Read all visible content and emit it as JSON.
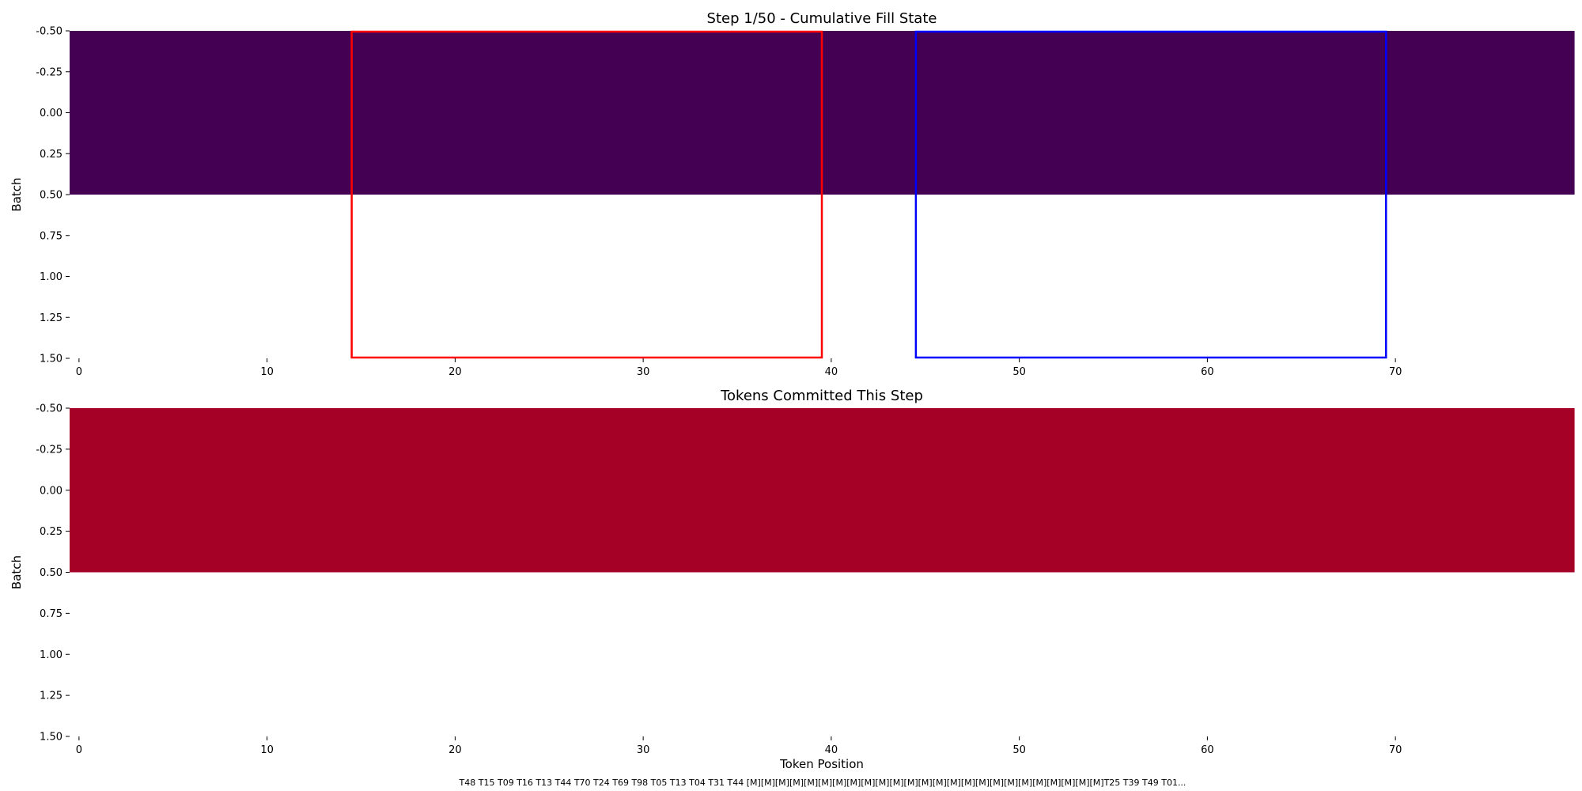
{
  "chart_data": [
    {
      "type": "heatmap",
      "title": "Step 1/50 - Cumulative Fill State",
      "xlabel": "",
      "ylabel": "Batch",
      "xlim": [
        -0.5,
        79.5
      ],
      "ylim": [
        1.5,
        -0.5
      ],
      "xticks": [
        0,
        10,
        20,
        30,
        40,
        50,
        60,
        70
      ],
      "yticks": [
        -0.5,
        -0.25,
        0,
        0.25,
        0.5,
        0.75,
        1,
        1.25,
        1.5
      ],
      "ytick_labels": [
        "-0.50",
        "-0.25",
        "0.00",
        "0.25",
        "0.50",
        "0.75",
        "1.00",
        "1.25",
        "1.50"
      ],
      "rows": 1,
      "cols": 80,
      "fill_value": 0,
      "cell_color": "#440154",
      "regions": [
        {
          "x_start": 14.5,
          "x_end": 39.5,
          "color": "#ff0000"
        },
        {
          "x_start": 44.5,
          "x_end": 69.5,
          "color": "#0000ff"
        }
      ]
    },
    {
      "type": "heatmap",
      "title": "Tokens Committed This Step",
      "xlabel": "Token Position",
      "ylabel": "Batch",
      "xlim": [
        -0.5,
        79.5
      ],
      "ylim": [
        1.5,
        -0.5
      ],
      "xticks": [
        0,
        10,
        20,
        30,
        40,
        50,
        60,
        70
      ],
      "yticks": [
        -0.5,
        -0.25,
        0,
        0.25,
        0.5,
        0.75,
        1,
        1.25,
        1.5
      ],
      "ytick_labels": [
        "-0.50",
        "-0.25",
        "0.00",
        "0.25",
        "0.50",
        "0.75",
        "1.00",
        "1.25",
        "1.50"
      ],
      "rows": 1,
      "cols": 80,
      "fill_value": 0,
      "cell_color": "#a50026"
    }
  ],
  "caption": "T48 T15 T09 T16 T13 T44 T70 T24 T69 T98 T05 T13 T04 T31 T44 [M][M][M][M][M][M][M][M][M][M][M][M][M][M][M][M][M][M][M][M][M][M][M][M][M]T25 T39 T49 T01..."
}
